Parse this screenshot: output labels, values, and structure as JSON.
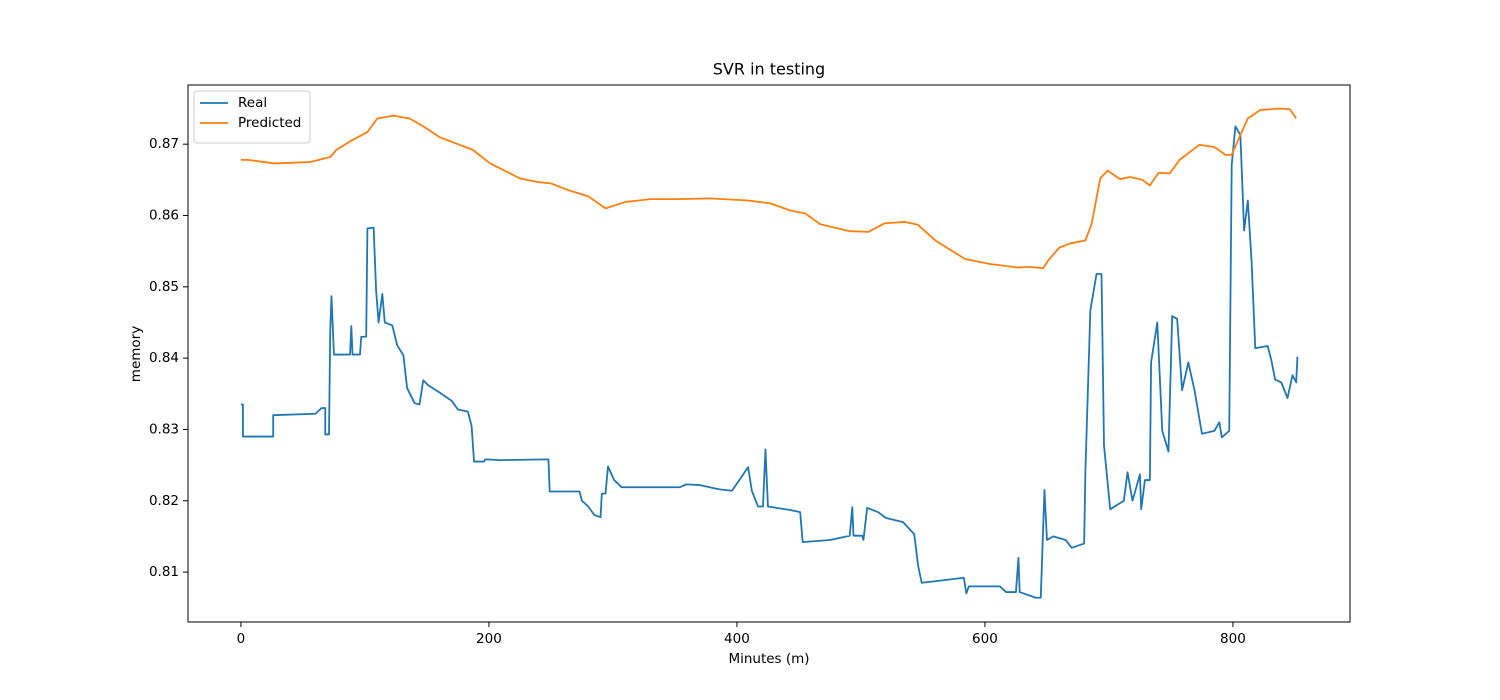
{
  "chart_data": {
    "type": "line",
    "title": "SVR in testing",
    "x_label": "Minutes (m)",
    "y_label": "memory",
    "xlim": [
      -42.7,
      894.4
    ],
    "ylim": [
      0.803,
      0.8783
    ],
    "xticks": [
      0,
      200,
      400,
      600,
      800
    ],
    "yticks": [
      0.81,
      0.82,
      0.83,
      0.84,
      0.85,
      0.86,
      0.87
    ],
    "legend": "upper left",
    "series": [
      {
        "name": "Real",
        "color": "#1f77b4",
        "x": [
          0,
          1.6,
          1.6,
          26,
          26,
          60,
          65,
          68,
          68,
          71,
          72,
          73,
          75,
          88,
          89,
          90,
          96,
          97,
          101,
          102,
          107,
          109,
          111,
          114,
          116,
          122,
          126,
          131,
          134,
          140,
          144,
          147,
          151,
          160,
          170,
          175,
          183,
          186,
          188,
          196,
          197,
          209,
          248,
          249,
          273,
          275,
          280,
          285,
          290,
          291,
          294,
          296,
          301,
          307,
          354,
          359,
          370,
          386,
          396,
          409,
          412,
          417,
          421,
          423,
          425,
          443,
          451,
          453,
          475,
          491,
          493,
          494,
          501,
          502,
          505,
          514,
          520,
          534,
          543,
          546,
          549,
          564,
          583,
          585,
          587,
          612,
          617,
          625,
          627,
          628,
          641,
          645,
          648,
          650,
          655,
          665,
          670,
          680,
          681,
          685,
          690,
          694,
          696,
          701,
          712,
          715,
          719,
          725,
          726,
          729,
          733,
          734,
          739,
          743,
          748,
          751,
          755,
          759,
          764,
          769,
          775,
          785,
          789,
          791,
          797,
          799,
          802,
          806,
          809,
          812,
          815,
          818,
          828,
          831,
          834,
          839,
          844,
          848,
          851,
          852
        ],
        "values": [
          0.8335,
          0.8335,
          0.829,
          0.829,
          0.832,
          0.8322,
          0.833,
          0.833,
          0.8293,
          0.8293,
          0.8438,
          0.8487,
          0.8405,
          0.8405,
          0.8445,
          0.8405,
          0.8405,
          0.843,
          0.843,
          0.8582,
          0.8583,
          0.8495,
          0.845,
          0.849,
          0.845,
          0.8446,
          0.8418,
          0.8404,
          0.8358,
          0.8337,
          0.8335,
          0.8369,
          0.8362,
          0.8352,
          0.834,
          0.8328,
          0.8325,
          0.8305,
          0.8255,
          0.8255,
          0.8258,
          0.8257,
          0.8258,
          0.8213,
          0.8213,
          0.82,
          0.8192,
          0.818,
          0.8177,
          0.821,
          0.821,
          0.8248,
          0.8229,
          0.8219,
          0.8219,
          0.8223,
          0.8222,
          0.8216,
          0.8214,
          0.8247,
          0.8214,
          0.8192,
          0.8192,
          0.8272,
          0.8192,
          0.8187,
          0.8184,
          0.8142,
          0.8145,
          0.8151,
          0.8191,
          0.8151,
          0.8151,
          0.8145,
          0.819,
          0.8184,
          0.8176,
          0.817,
          0.8153,
          0.811,
          0.8085,
          0.8088,
          0.8092,
          0.807,
          0.808,
          0.808,
          0.8072,
          0.8072,
          0.812,
          0.8072,
          0.8064,
          0.8064,
          0.8215,
          0.8145,
          0.815,
          0.8145,
          0.8134,
          0.814,
          0.8241,
          0.8467,
          0.8518,
          0.8518,
          0.8278,
          0.8188,
          0.82,
          0.824,
          0.82,
          0.8237,
          0.8188,
          0.8229,
          0.8229,
          0.8394,
          0.845,
          0.8298,
          0.8269,
          0.8459,
          0.8455,
          0.8355,
          0.8394,
          0.8355,
          0.8294,
          0.8298,
          0.831,
          0.8289,
          0.8298,
          0.8671,
          0.8725,
          0.8713,
          0.8579,
          0.8621,
          0.8537,
          0.8414,
          0.8417,
          0.8397,
          0.837,
          0.8366,
          0.8344,
          0.8376,
          0.8366,
          0.8402
        ]
      },
      {
        "name": "Predicted",
        "color": "#ff7f0e",
        "x": [
          0,
          5.6,
          27,
          56,
          72,
          77,
          88,
          102,
          110,
          123,
          136,
          148,
          160,
          187,
          201,
          225,
          239,
          250,
          265,
          280,
          294,
          310,
          330,
          354,
          378,
          409,
          427,
          443,
          455,
          467,
          491,
          506,
          519,
          535,
          546,
          560,
          584,
          604,
          627,
          636,
          647,
          651,
          660,
          669,
          681,
          686,
          693,
          699,
          709,
          717,
          727,
          733,
          740,
          749,
          757,
          769,
          773,
          785,
          794,
          799,
          806,
          812,
          822,
          838,
          846,
          851
        ],
        "values": [
          0.8678,
          0.8678,
          0.8673,
          0.8675,
          0.8682,
          0.8692,
          0.8704,
          0.8717,
          0.8736,
          0.874,
          0.8736,
          0.8724,
          0.871,
          0.8692,
          0.8673,
          0.8652,
          0.8647,
          0.8645,
          0.8635,
          0.8627,
          0.861,
          0.8619,
          0.8623,
          0.8623,
          0.8624,
          0.8621,
          0.8617,
          0.8607,
          0.8603,
          0.8588,
          0.8578,
          0.8577,
          0.8589,
          0.8591,
          0.8587,
          0.8565,
          0.8539,
          0.8532,
          0.8527,
          0.8528,
          0.8526,
          0.8537,
          0.8555,
          0.8561,
          0.8565,
          0.8588,
          0.8652,
          0.8663,
          0.8651,
          0.8654,
          0.865,
          0.8642,
          0.866,
          0.8659,
          0.8678,
          0.8694,
          0.8699,
          0.8696,
          0.8685,
          0.8685,
          0.8713,
          0.8736,
          0.8748,
          0.875,
          0.8749,
          0.8736
        ]
      }
    ]
  }
}
